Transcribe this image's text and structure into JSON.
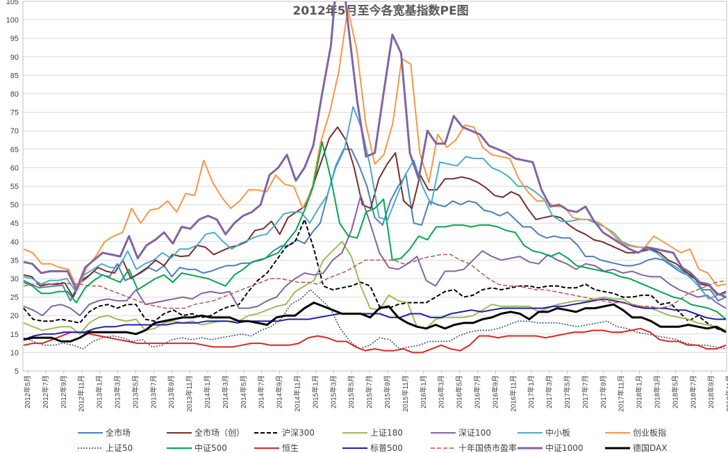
{
  "chart_data": {
    "type": "line",
    "title": "2012年5月至今各宽基指数PE图",
    "xlabel": "",
    "ylabel": "",
    "ylim": [
      5,
      105
    ],
    "yticks": [
      5,
      10,
      15,
      20,
      25,
      30,
      35,
      40,
      45,
      50,
      55,
      60,
      65,
      70,
      75,
      80,
      85,
      90,
      95,
      100,
      105
    ],
    "grid": true,
    "legend_position": "bottom",
    "x_tick_labels": [
      "2012年5月",
      "2012年7月",
      "2012年9月",
      "2012年11月",
      "2013年1月",
      "2013年3月",
      "2013年5月",
      "2013年7月",
      "2013年9月",
      "2013年11月",
      "2014年1月",
      "2014年3月",
      "2014年5月",
      "2014年7月",
      "2014年9月",
      "2014年11月",
      "2015年1月",
      "2015年3月",
      "2015年5月",
      "2015年7月",
      "2015年9月",
      "2015年11月",
      "2016年1月",
      "2016年3月",
      "2016年5月",
      "2016年7月",
      "2016年9月",
      "2016年11月",
      "2017年1月",
      "2017年3月",
      "2017年5月",
      "2017年7月",
      "2017年9月",
      "2017年11月",
      "2018年1月",
      "2018年3月",
      "2018年5月",
      "2018年7月",
      "2018年9月",
      "2018年11月"
    ],
    "series": [
      {
        "name": "全市场",
        "color": "#4a7ebb",
        "dash": "solid",
        "width": 2,
        "values": [
          29.5,
          28.5,
          27.5,
          27.8,
          28,
          28.2,
          24,
          28.5,
          30,
          32,
          31,
          30.5,
          34,
          29.5,
          30.5,
          31.5,
          33,
          32,
          33.5,
          30.5,
          33,
          32.5,
          32.5,
          31.5,
          32,
          32.8,
          33.5,
          33.5,
          34.2,
          34.2,
          35,
          35.5,
          37.5,
          38.8,
          39,
          40.5,
          39.5,
          42.5,
          45,
          53,
          60.5,
          65,
          65,
          60.5,
          55,
          46.5,
          44.5,
          51,
          55,
          58,
          45,
          44.5,
          51,
          50,
          49.5,
          51,
          50,
          51,
          50.5,
          48.5,
          48,
          47,
          48,
          46,
          44,
          44,
          42,
          41,
          41.5,
          41,
          41,
          39,
          36,
          36,
          35,
          34.5,
          34,
          33.5,
          33.5,
          34,
          35,
          35.5,
          35,
          33.5,
          32,
          31,
          30,
          27,
          27,
          24,
          25
        ]
      },
      {
        "name": "全市场（创）",
        "color": "#772c2a",
        "dash": "solid",
        "width": 2,
        "values": [
          31,
          30.5,
          28,
          28.5,
          28.5,
          28.8,
          25,
          29.5,
          31,
          33,
          32,
          31.5,
          35,
          30,
          31.5,
          33,
          35,
          33.5,
          36.5,
          36,
          36.2,
          39,
          38.5,
          36.5,
          37.5,
          38.5,
          39,
          40,
          43,
          43.5,
          45.5,
          42,
          46.5,
          48,
          49.5,
          55,
          61.5,
          68,
          71,
          67.5,
          60,
          50,
          49,
          57,
          61,
          64,
          51,
          49,
          58,
          54,
          54,
          57,
          57,
          57.5,
          57,
          56,
          54.5,
          52.5,
          52,
          53.5,
          52.5,
          49,
          46,
          46.5,
          47,
          46.5,
          44.5,
          43,
          42,
          40.5,
          40,
          39,
          38,
          37,
          37,
          37.5,
          38,
          37,
          35,
          34,
          32,
          30.5,
          28.5,
          28,
          25.5,
          26.5
        ]
      },
      {
        "name": "沪深300",
        "color": "#000000",
        "dash": "dashed",
        "width": 2,
        "values": [
          22,
          19,
          18.5,
          18.5,
          19,
          18.5,
          18,
          21,
          22.5,
          23,
          22,
          23,
          23,
          19,
          18.5,
          20.5,
          21.5,
          20,
          20.5,
          19.5,
          20,
          21.5,
          22.5,
          23,
          26.5,
          29.5,
          31.5,
          35,
          38.5,
          40,
          46,
          38,
          28,
          27,
          27.5,
          28,
          29,
          28,
          22.5,
          22,
          23,
          23.5,
          23.5,
          23.5,
          25,
          26.5,
          27,
          25,
          25.5,
          27,
          27.5,
          27,
          27.5,
          28,
          28,
          27.5,
          28,
          28,
          27.5,
          27.5,
          28.5,
          27,
          26.5,
          26,
          25,
          25,
          25.5,
          25.5,
          23,
          23.5,
          21,
          18.5,
          20,
          18,
          16.5,
          15.5
        ]
      },
      {
        "name": "上证180",
        "color": "#9bbb59",
        "dash": "solid",
        "width": 2,
        "values": [
          18,
          17,
          16,
          16.5,
          17,
          17,
          15,
          18,
          19.5,
          20,
          19,
          18.5,
          19,
          16,
          16.5,
          18,
          18.5,
          18,
          18.5,
          17.5,
          18,
          18.5,
          18.5,
          18.5,
          20,
          20.5,
          21.5,
          22.5,
          23,
          26.5,
          28,
          29.5,
          35,
          37.5,
          40,
          36,
          28,
          22,
          21.5,
          25.5,
          24,
          23.5,
          17,
          16.5,
          19,
          19.5,
          19.5,
          19.5,
          20,
          21.5,
          23,
          22.5,
          22.5,
          22.5,
          22.5,
          21,
          22,
          23,
          23.5,
          24,
          24,
          24.5,
          25,
          24.5,
          24.5,
          23,
          22.5,
          22,
          21,
          20,
          19.5,
          19,
          18,
          17.5,
          17,
          16
        ]
      },
      {
        "name": "深证100",
        "color": "#8064a2",
        "dash": "solid",
        "width": 2,
        "values": [
          22.5,
          21.5,
          20,
          22.5,
          23,
          22,
          20,
          23,
          24,
          24.5,
          24,
          24,
          27,
          23,
          23.5,
          24,
          24.5,
          25,
          24.5,
          26,
          26.5,
          26,
          26.5,
          22,
          22,
          22.5,
          24,
          25,
          28,
          30,
          31.5,
          31,
          31.5,
          35,
          37,
          43,
          52.5,
          45,
          37,
          33,
          32.5,
          34,
          36,
          29.5,
          28,
          32,
          32,
          32.5,
          35,
          37.5,
          36,
          35,
          35.5,
          36,
          34.5,
          34,
          36.5,
          35,
          34,
          32.5,
          34,
          33.5,
          32,
          32.5,
          31.5,
          32,
          31,
          30.5,
          30.5,
          28.5,
          27,
          26,
          25,
          25.5,
          23.5,
          22
        ]
      },
      {
        "name": "中小板",
        "color": "#4bacc6",
        "dash": "solid",
        "width": 2,
        "values": [
          30.5,
          30,
          28.5,
          29.5,
          29.5,
          30,
          26.5,
          31,
          32.5,
          34,
          33,
          33,
          37.5,
          32.5,
          34,
          35,
          37,
          35.5,
          38,
          38,
          39,
          42,
          42.5,
          40,
          38,
          39.5,
          40.5,
          41.5,
          42,
          44.5,
          47.5,
          48,
          48,
          45,
          49,
          52.5,
          60,
          65,
          76.5,
          70.5,
          60,
          46.5,
          46,
          52,
          58,
          62,
          55,
          50,
          61.5,
          61,
          60.5,
          63,
          62.5,
          62.5,
          60,
          59,
          57.5,
          55,
          55,
          53.5,
          51.5,
          47,
          45.5,
          45.5,
          46,
          46,
          45,
          44,
          42.5,
          40,
          39,
          38.5,
          38,
          37,
          35,
          33.5,
          32,
          30,
          27.5,
          24.5,
          25.5,
          26
        ]
      },
      {
        "name": "创业板指",
        "color": "#f79646",
        "dash": "solid",
        "width": 2,
        "values": [
          38,
          37,
          34,
          34,
          33,
          32.5,
          27,
          33,
          36,
          40,
          41.5,
          42.5,
          49,
          45,
          48.5,
          49,
          51,
          48,
          53,
          52.5,
          62,
          56,
          52,
          49,
          51,
          54,
          54,
          53.5,
          58,
          55.5,
          55,
          49,
          54,
          67,
          75,
          86,
          103,
          92,
          72,
          61,
          63.5,
          72,
          89.5,
          88,
          64,
          56,
          69,
          65.5,
          67.5,
          71.5,
          71,
          65.5,
          63.5,
          63,
          62.5,
          57,
          53.5,
          51,
          51,
          49.5,
          49.5,
          46.5,
          46,
          46,
          45,
          43,
          40.5,
          39,
          38.5,
          38.5,
          41.5,
          40,
          38.5,
          37,
          38,
          32.5,
          31.5,
          28,
          28.5
        ]
      },
      {
        "name": "上证50",
        "color": "#1f497d",
        "dash": "dotted",
        "width": 1.5,
        "values": [
          14,
          13,
          12,
          12,
          12.5,
          12,
          11,
          13,
          14,
          14.5,
          14,
          13,
          13.5,
          11.5,
          12,
          13.5,
          14,
          13.5,
          14,
          13.5,
          14,
          14.5,
          15,
          14.5,
          16,
          17,
          19,
          23,
          24.5,
          27,
          24.5,
          22,
          16.5,
          13,
          11,
          12,
          14,
          13.5,
          11,
          11.5,
          12,
          13,
          13,
          13,
          14.5,
          15.5,
          16,
          16,
          16.5,
          17.5,
          18.5,
          18.5,
          18,
          18,
          18,
          17.5,
          17,
          17.5,
          18,
          18.5,
          17,
          16.5,
          15.5,
          15,
          14.5,
          14,
          13.5,
          12.5,
          12,
          12,
          11.5,
          11
        ]
      },
      {
        "name": "中证500",
        "color": "#00a650",
        "dash": "solid",
        "width": 2,
        "values": [
          29,
          28,
          26,
          26,
          26.5,
          26.5,
          23.5,
          27.5,
          29.5,
          31,
          30,
          29,
          32.5,
          27,
          28.5,
          30,
          31,
          29,
          31.5,
          31,
          30.5,
          30,
          29,
          28,
          31,
          32.5,
          34.5,
          35,
          36,
          37,
          40,
          43,
          48.5,
          55,
          67,
          57,
          45,
          41.5,
          41,
          48,
          49,
          51.5,
          35,
          35.5,
          38,
          41.5,
          40.5,
          44,
          44,
          44.5,
          44.5,
          44,
          44.5,
          44.5,
          44,
          43,
          42.5,
          39,
          37.5,
          37,
          36,
          37,
          35.5,
          33.5,
          33,
          32.5,
          32,
          31.5,
          30.5,
          30,
          29,
          28,
          27,
          26,
          25,
          24.5,
          23,
          22.5,
          22,
          21,
          19
        ]
      },
      {
        "name": "恒生",
        "color": "#d92525",
        "dash": "solid",
        "width": 2,
        "values": [
          12,
          12.5,
          12.5,
          13.5,
          14.5,
          15.5,
          15.5,
          15,
          14.5,
          14,
          13.5,
          13,
          12.5,
          12.5,
          12.5,
          12.5,
          12.5,
          12.5,
          12.5,
          12,
          11.5,
          11.5,
          11.5,
          12,
          12.5,
          12.5,
          12,
          12,
          12,
          12.5,
          14,
          14.5,
          14,
          13,
          13,
          11.5,
          10.5,
          11,
          10.5,
          10.5,
          11,
          10,
          10,
          11,
          12,
          11,
          10.5,
          12,
          14.5,
          14.5,
          14,
          14.5,
          14.5,
          14.5,
          14.5,
          14,
          14.5,
          15,
          15.5,
          15.5,
          16,
          16,
          15.5,
          15.5,
          16,
          16.5,
          15.5,
          13.5,
          13,
          13,
          12,
          12,
          11,
          11,
          12
        ]
      },
      {
        "name": "标普500",
        "color": "#1f1fa8",
        "dash": "solid",
        "width": 2,
        "values": [
          13.5,
          14.5,
          15,
          15,
          15.5,
          15.5,
          15.5,
          16.5,
          17,
          17,
          17.5,
          17.5,
          17.5,
          17.5,
          17.5,
          18,
          18,
          18,
          18.5,
          18.5,
          18.5,
          18,
          18.5,
          18.5,
          18.5,
          18.5,
          19,
          19,
          19,
          19.5,
          20,
          20.5,
          20.5,
          20.5,
          20.5,
          20.5,
          19.5,
          19.5,
          20.5,
          20.5,
          19.5,
          19.5,
          20.5,
          21,
          21.5,
          21,
          21.5,
          22,
          22,
          22,
          22,
          22,
          22.5,
          22.5,
          23,
          23.5,
          24,
          24.5,
          24,
          23.5,
          22.5,
          22,
          22,
          22,
          21.5,
          21.5,
          20.5,
          19.5,
          19,
          19
        ]
      },
      {
        "name": "十年国债市盈率",
        "color": "#c0504d",
        "dash": "dashed",
        "width": 1.5,
        "values": [
          28,
          28.5,
          28.5,
          28.5,
          29,
          28.5,
          28.5,
          28,
          28,
          27,
          26,
          25,
          24,
          23,
          22.5,
          22,
          22,
          22,
          23,
          23.5,
          24,
          25,
          26,
          27,
          28,
          29,
          30,
          30,
          29.5,
          29,
          29,
          28.5,
          30,
          31,
          32,
          33.5,
          35,
          35,
          35,
          35,
          34,
          34.5,
          35.5,
          36,
          36.5,
          36.5,
          35,
          34,
          32,
          30,
          28.5,
          28,
          28,
          27.5,
          27,
          27,
          26.5,
          26,
          25.5,
          25,
          24.5,
          24,
          23.5,
          23.5,
          23,
          22.5,
          22.5,
          22,
          22.5,
          24,
          26,
          27,
          28,
          29,
          29.5
        ]
      },
      {
        "name": "中证1000",
        "color": "#8064a2",
        "dash": "solid",
        "width": 3,
        "values": [
          34.5,
          34,
          31.5,
          32,
          32,
          32,
          27,
          33,
          35,
          37,
          36.5,
          36,
          41.5,
          35.5,
          39,
          40.5,
          42.5,
          39.5,
          44,
          43.5,
          46,
          47,
          46,
          42,
          45,
          47,
          48,
          50,
          58,
          60,
          63.5,
          56.5,
          60,
          66,
          80,
          93,
          120,
          98,
          78,
          63,
          64,
          80,
          96,
          91,
          64,
          57,
          70,
          66.5,
          66.5,
          74,
          71,
          70,
          69,
          66,
          65,
          64,
          62.5,
          62,
          61.5,
          54,
          49.5,
          50,
          48.5,
          48,
          49.5,
          45.5,
          42.5,
          41,
          39.5,
          38,
          37,
          38.5,
          38,
          37.5,
          37,
          33,
          31.5,
          29,
          28.5,
          26,
          25
        ]
      },
      {
        "name": "德国DAX",
        "color": "#000000",
        "dash": "solid",
        "width": 3,
        "values": [
          13.5,
          14,
          14,
          14,
          13,
          13,
          14,
          15.5,
          15.5,
          15.5,
          15.5,
          15.5,
          15,
          16,
          18,
          18.5,
          19,
          19.5,
          19.5,
          20,
          19.5,
          19.5,
          19.5,
          18.5,
          18.5,
          18,
          17.5,
          19.5,
          20,
          20,
          22,
          23.5,
          22.5,
          21.5,
          20.5,
          20.5,
          20.5,
          19.5,
          22,
          22.5,
          19.5,
          18,
          17,
          16.5,
          17.5,
          16.5,
          17.5,
          18,
          18,
          19,
          19.5,
          20.5,
          21,
          20.5,
          19,
          21,
          21,
          22,
          21.5,
          21,
          22,
          22,
          22.5,
          23,
          21.5,
          19.5,
          19.5,
          18.5,
          17,
          17,
          17,
          17.5,
          17,
          16.5,
          17,
          15.5
        ]
      }
    ]
  }
}
